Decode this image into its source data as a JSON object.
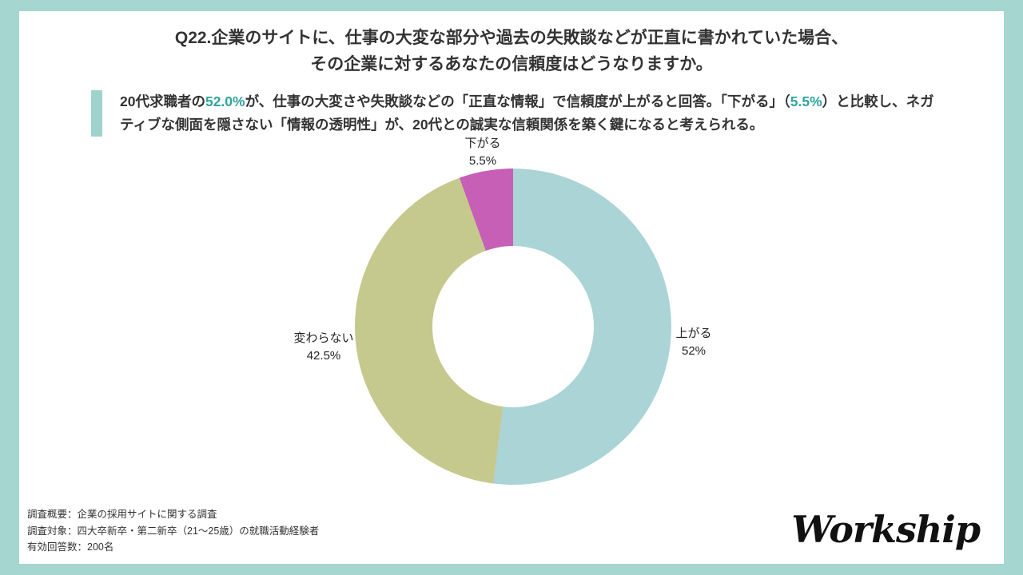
{
  "title": {
    "line1": "Q22.企業のサイトに、仕事の大変な部分や過去の失敗談などが正直に書かれていた場合、",
    "line2": "その企業に対するあなたの信頼度はどうなりますか。"
  },
  "summary": {
    "segments": [
      {
        "text": "20代求職者の",
        "highlight": false
      },
      {
        "text": "52.0%",
        "highlight": true
      },
      {
        "text": "が、仕事の大変さや失敗談などの「正直な情報」で信頼度が上がると回答。「下がる」（",
        "highlight": false
      },
      {
        "text": "5.5%",
        "highlight": true
      },
      {
        "text": "）と比較し、ネガティブな側面を隠さない「情報の透明性」が、20代との誠実な信頼関係を築く鍵になると考えられる。",
        "highlight": false
      }
    ]
  },
  "chart_data": {
    "type": "pie",
    "donut": true,
    "start_angle_deg": 0,
    "direction": "clockwise",
    "categories": [
      "上がる",
      "変わらない",
      "下がる"
    ],
    "values": [
      52,
      42.5,
      5.5
    ],
    "display_values": [
      "52%",
      "42.5%",
      "5.5%"
    ],
    "colors": [
      "#abd4d6",
      "#c6c98e",
      "#c75fb6"
    ],
    "title": "Q22.企業のサイトに、仕事の大変な部分や過去の失敗談などが正直に書かれていた場合、その企業に対するあなたの信頼度はどうなりますか。",
    "legend_position": "none",
    "labels_on_chart": true
  },
  "footer": {
    "lines": [
      "調査概要：企業の採用サイトに関する調査",
      "調査対象：四大卒新卒・第二新卒（21〜25歳）の就職活動経験者",
      "有効回答数：200名"
    ],
    "logo": "Workship"
  },
  "colors": {
    "frame": "#a5d6d0",
    "accent_text": "#2fa49e",
    "accent_bar": "#9ed3cd",
    "card_bg": "#ffffff",
    "text": "#333333"
  }
}
